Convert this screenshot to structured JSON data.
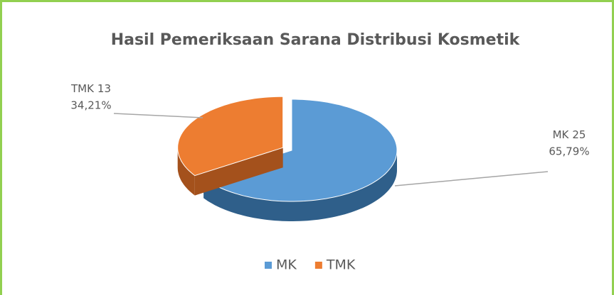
{
  "chart_data": {
    "type": "pie",
    "title": "Hasil Pemeriksaan Sarana Distribusi Kosmetik",
    "categories": [
      "MK",
      "TMK"
    ],
    "values": [
      25,
      13
    ],
    "percentages": [
      65.79,
      34.21
    ],
    "percentage_labels": [
      "65,79%",
      "34,21%"
    ],
    "colors": [
      "#5b9bd5",
      "#ed7d31"
    ],
    "side_colors": [
      "#2f5f8a",
      "#a4511c"
    ],
    "legend": "bottom"
  }
}
